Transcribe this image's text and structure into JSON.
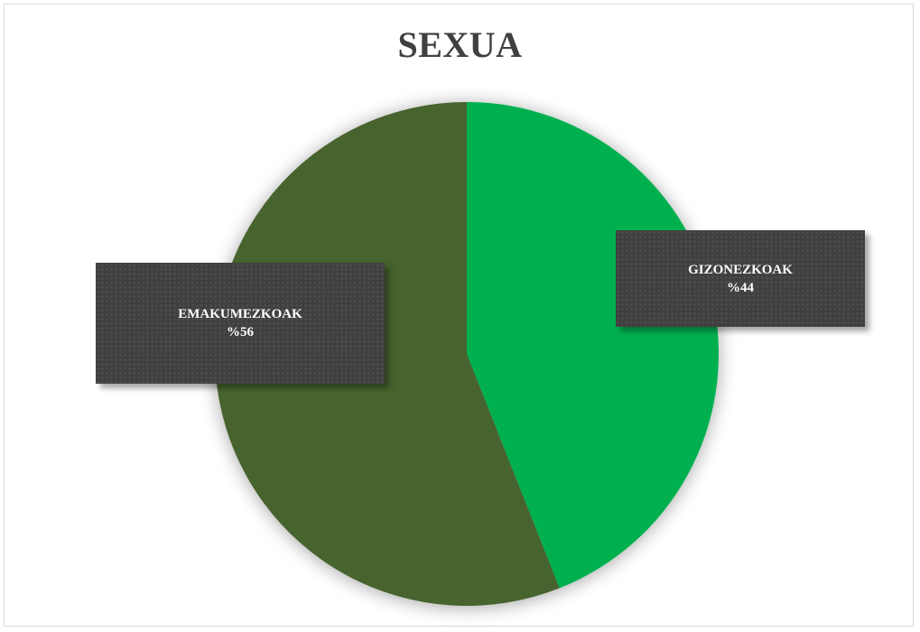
{
  "chart_data": {
    "type": "pie",
    "title": "SEXUA",
    "slices": [
      {
        "name": "GIZONEZKOAK",
        "value": 44,
        "label": "%44",
        "color": "#00b050"
      },
      {
        "name": "EMAKUMEZKOAK",
        "value": 56,
        "label": "%56",
        "color": "#47632f"
      }
    ],
    "legend": "none",
    "data_label_style": "dark-box-callout"
  }
}
